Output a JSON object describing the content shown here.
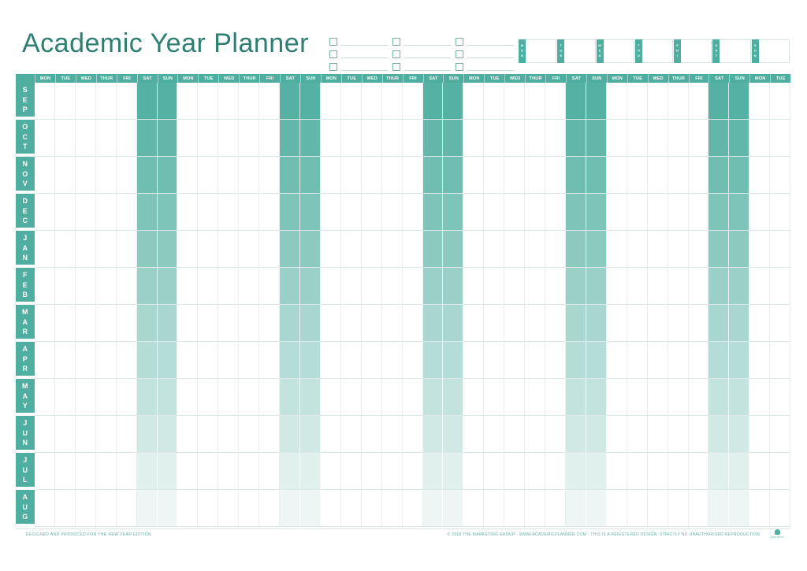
{
  "title": "Academic Year Planner",
  "colors": {
    "accent": "#4FAE9F",
    "title_text": "#2F7E72",
    "weekend_gradient_top": "#54B1A3",
    "weekend_gradient_bottom": "#EDF6F4",
    "grid_line": "#DCE9E6"
  },
  "todo": {
    "columns": 3,
    "rows_per_column": 3
  },
  "day_tags": [
    "MON",
    "TUE",
    "WED",
    "THU",
    "FRI",
    "SAT",
    "SUN"
  ],
  "grid": {
    "day_headers": [
      "MON",
      "TUE",
      "WED",
      "THUR",
      "FRI",
      "SAT",
      "SUN",
      "MON",
      "TUE",
      "WED",
      "THUR",
      "FRI",
      "SAT",
      "SUN",
      "MON",
      "TUE",
      "WED",
      "THUR",
      "FRI",
      "SAT",
      "SUN",
      "MON",
      "TUE",
      "WED",
      "THUR",
      "FRI",
      "SAT",
      "SUN",
      "MON",
      "TUE",
      "WED",
      "THUR",
      "FRI",
      "SAT",
      "SUN",
      "MON",
      "TUE"
    ],
    "weekend_indices": [
      5,
      6,
      12,
      13,
      19,
      20,
      26,
      27,
      33,
      34
    ],
    "months": [
      "SEP",
      "OCT",
      "NOV",
      "DEC",
      "JAN",
      "FEB",
      "MAR",
      "APR",
      "MAY",
      "JUN",
      "JUL",
      "AUG"
    ],
    "weekend_month_colors": [
      "#54B1A3",
      "#62B7AA",
      "#70BEB2",
      "#7EC4B9",
      "#8CCAC0",
      "#9AD0C8",
      "#A7D7CF",
      "#B5DDD7",
      "#C3E3DE",
      "#D1E9E5",
      "#DFF0ED",
      "#EDF6F4"
    ]
  },
  "footer": {
    "left_text": "DESIGNED AND PRODUCED FOR THE NEW YEAR EDITION",
    "right_text": "© 2018 THE MARKETING GROUP · WWW.ACADEMICPLANNER.COM · THIS IS A REGISTERED DESIGN. STRICTLY NO UNAUTHORISED REPRODUCTION",
    "brand": "planners"
  }
}
